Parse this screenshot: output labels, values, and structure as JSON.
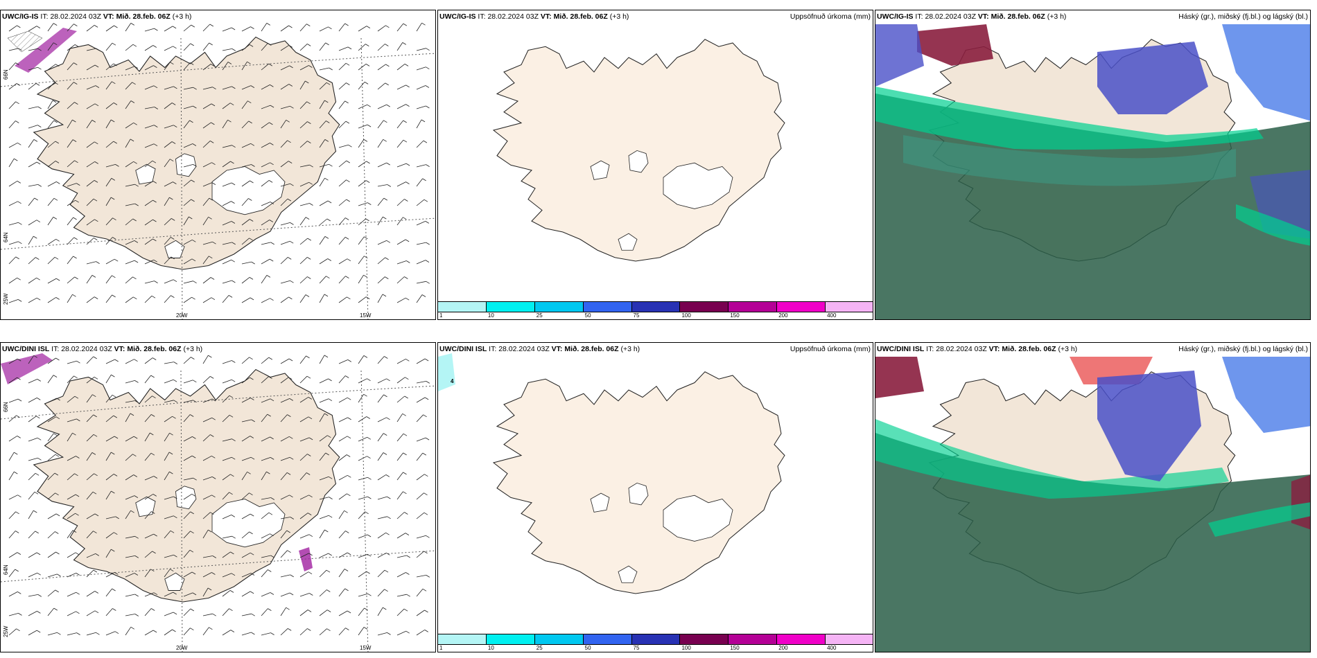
{
  "rows": [
    {
      "model": "UWC/IG-IS",
      "panels": [
        {
          "model": "UWC/IG-IS",
          "it_label": "IT:",
          "it": "28.02.2024 03Z",
          "vt_label": "VT:",
          "vt": "Mið. 28.feb. 06Z",
          "lead": "(+3 h)",
          "right_title": ""
        },
        {
          "model": "UWC/IG-IS",
          "it_label": "IT:",
          "it": "28.02.2024 03Z",
          "vt_label": "VT:",
          "vt": "Mið. 28.feb. 06Z",
          "lead": "(+3 h)",
          "right_title": "Uppsöfnuð úrkoma (mm)"
        },
        {
          "model": "UWC/IG-IS",
          "it_label": "IT:",
          "it": "28.02.2024 03Z",
          "vt_label": "VT:",
          "vt": "Mið. 28.feb. 06Z",
          "lead": "(+3 h)",
          "right_title": "Háský (gr.), miðský (fj.bl.) og lágský (bl.)"
        }
      ]
    },
    {
      "model": "UWC/DINI ISL",
      "panels": [
        {
          "model": "UWC/DINI ISL",
          "it_label": "IT:",
          "it": "28.02.2024 03Z",
          "vt_label": "VT:",
          "vt": "Mið. 28.feb. 06Z",
          "lead": "(+3 h)",
          "right_title": ""
        },
        {
          "model": "UWC/DINI ISL",
          "it_label": "IT:",
          "it": "28.02.2024 03Z",
          "vt_label": "VT:",
          "vt": "Mið. 28.feb. 06Z",
          "lead": "(+3 h)",
          "right_title": "Uppsöfnuð úrkoma (mm)"
        },
        {
          "model": "UWC/DINI ISL",
          "it_label": "IT:",
          "it": "28.02.2024 03Z",
          "vt_label": "VT:",
          "vt": "Mið. 28.feb. 06Z",
          "lead": "(+3 h)",
          "right_title": "Háský (gr.), miðský (fj.bl.) og lágský (bl.)"
        }
      ]
    }
  ],
  "grid_labels": {
    "lat_66": "66N",
    "lat_64": "64N",
    "lon_25": "25W",
    "lon_20": "20W",
    "lon_15": "15W"
  },
  "precip_scale": {
    "ticks": [
      "1",
      "10",
      "25",
      "50",
      "75",
      "100",
      "150",
      "200",
      "400"
    ],
    "colors": [
      "#b4f5f5",
      "#00f0f0",
      "#00c8f0",
      "#3264f0",
      "#2832b4",
      "#780050",
      "#b40096",
      "#f000c8",
      "#f5b4f5"
    ]
  },
  "colors": {
    "land": "#f2e6d8",
    "land_light": "#fbf0e4",
    "cloud_green": "#2a5e48",
    "cloud_teal": "#3aa08a",
    "cloud_blue": "#4a50c8",
    "cloud_red": "#8a1e3e"
  },
  "contour_value": "4"
}
